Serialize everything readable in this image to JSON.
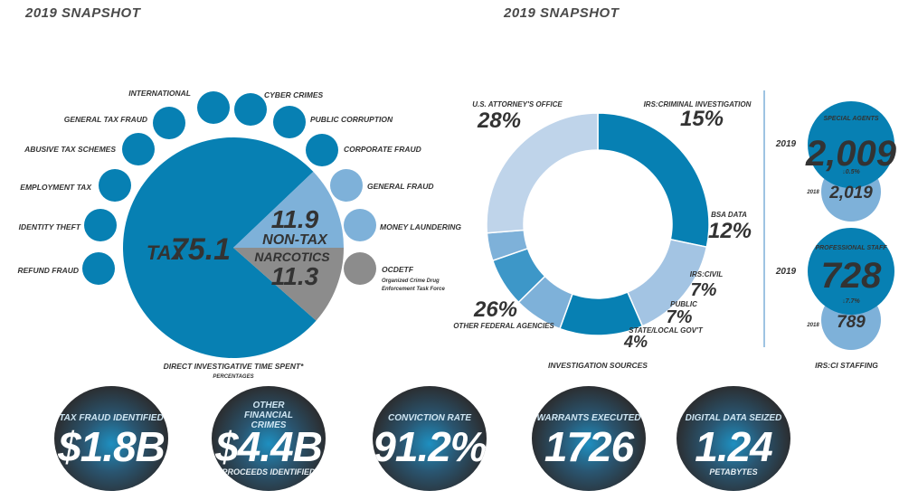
{
  "header": {
    "left": "2019 SNAPSHOT",
    "right": "2019 SNAPSHOT"
  },
  "colors": {
    "dark": "#0780b3",
    "light": "#7eb1d9",
    "lighter": "#a3c4e3",
    "lightest": "#bfd4ea",
    "mid": "#3d97c8",
    "gray": "#8c8c8c"
  },
  "chart_data": [
    {
      "type": "pie",
      "title": "DIRECT INVESTIGATIVE TIME SPENT*",
      "subtitle": "PERCENTAGES",
      "slices": [
        {
          "name": "TAX",
          "value": 75.1
        },
        {
          "name": "NON-TAX",
          "value": 11.9
        },
        {
          "name": "NARCOTICS",
          "value": 11.3
        }
      ],
      "tax_categories": [
        "INTERNATIONAL",
        "GENERAL TAX FRAUD",
        "ABUSIVE TAX SCHEMES",
        "EMPLOYMENT TAX",
        "IDENTITY THEFT",
        "REFUND FRAUD"
      ],
      "nontax_categories": [
        "CYBER CRIMES",
        "PUBLIC CORRUPTION",
        "CORPORATE FRAUD",
        "GENERAL FRAUD",
        "MONEY LAUNDERING"
      ],
      "narcotics_category": {
        "name": "OCDETF",
        "note1": "Organized Crime Drug",
        "note2": "Enforcement Task Force"
      }
    },
    {
      "type": "pie",
      "title": "INVESTIGATION SOURCES",
      "slices": [
        {
          "name": "U.S. ATTORNEY'S OFFICE",
          "value": 28,
          "label": "28%"
        },
        {
          "name": "IRS:CRIMINAL INVESTIGATION",
          "value": 15,
          "label": "15%"
        },
        {
          "name": "BSA DATA",
          "value": 12,
          "label": "12%"
        },
        {
          "name": "IRS:CIVIL",
          "value": 7,
          "label": "7%"
        },
        {
          "name": "PUBLIC",
          "value": 7,
          "label": "7%"
        },
        {
          "name": "STATE/LOCAL GOV'T",
          "value": 4,
          "label": "4%"
        },
        {
          "name": "OTHER FEDERAL AGENCIES",
          "value": 26,
          "label": "26%"
        }
      ]
    },
    {
      "type": "table",
      "title": "IRS:CI STAFFING",
      "groups": [
        {
          "name": "SPECIAL AGENTS",
          "current_year": "2019",
          "current": "2,009",
          "change": "↓0.5%",
          "prior_year": "2018",
          "prior": "2,019"
        },
        {
          "name": "PROFESSIONAL STAFF",
          "current_year": "2019",
          "current": "728",
          "change": "↓7.7%",
          "prior_year": "2018",
          "prior": "789"
        }
      ]
    }
  ],
  "stats": [
    {
      "top": "TAX FRAUD IDENTIFIED",
      "value": "$1.8B",
      "bottom": ""
    },
    {
      "top": "OTHER FINANCIAL CRIMES",
      "value": "$4.4B",
      "bottom": "PROCEEDS IDENTIFIED"
    },
    {
      "top": "CONVICTION RATE",
      "value": "91.2%",
      "bottom": ""
    },
    {
      "top": "WARRANTS EXECUTED",
      "value": "1726",
      "bottom": ""
    },
    {
      "top": "DIGITAL DATA SEIZED",
      "value": "1.24",
      "bottom": "PETABYTES"
    }
  ]
}
